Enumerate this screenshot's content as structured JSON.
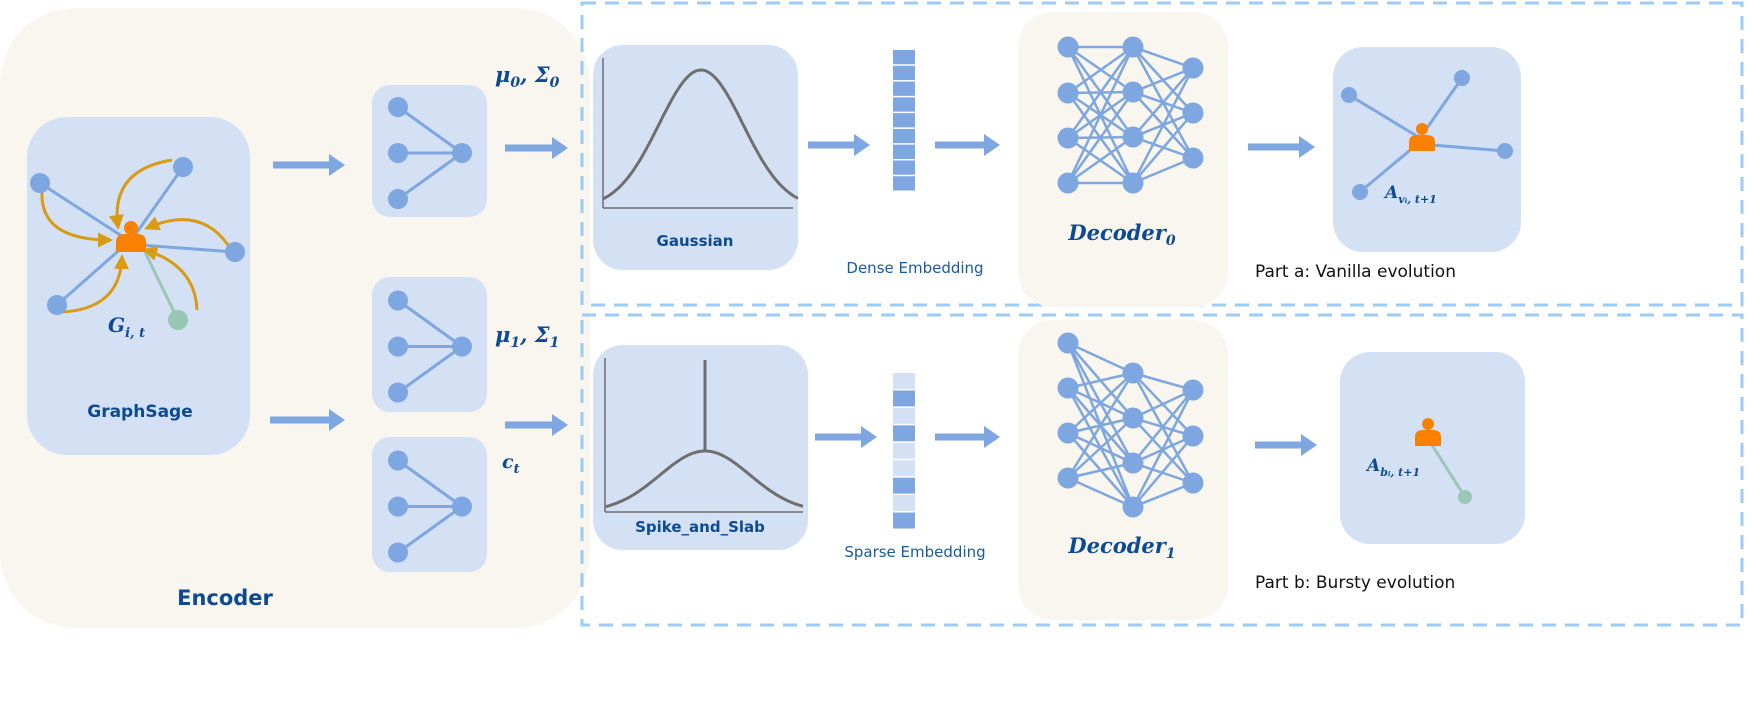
{
  "colors": {
    "encoder_bg": "#f8f6ee",
    "panel_bg": "#d4e1f4",
    "node": "#7ea6e0",
    "edge": "#7ea6e0",
    "person": "#fa8000",
    "aggregation_arrow": "#d99b14",
    "bursty_node": "#9ac7b5",
    "dashed_border": "#9ccbf5",
    "text": "#0d4a94",
    "curve": "#6f6f6f"
  },
  "encoder": {
    "title": "Encoder",
    "graphsage": {
      "label": "GraphSage",
      "graph_label": {
        "main": "G",
        "sub": "i, t"
      }
    },
    "outputs": {
      "mu0_sigma0": {
        "main": "μ",
        "sub1": "0",
        "mid": ", Σ",
        "sub2": "0"
      },
      "mu1_sigma1": {
        "main": "μ",
        "sub1": "1",
        "mid": ", Σ",
        "sub2": "1"
      },
      "c_t": {
        "main": "c",
        "sub": "t"
      }
    }
  },
  "part_a": {
    "caption": "Part a: Vanilla evolution",
    "distribution": "Gaussian",
    "embedding_label": "Dense Embedding",
    "embedding_pattern": [
      1,
      1,
      1,
      1,
      1,
      1,
      1,
      1,
      1
    ],
    "decoder": {
      "main": "Decoder",
      "sub": "0"
    },
    "output_label": {
      "main": "A",
      "sub": "vᵢ, t+1"
    }
  },
  "part_b": {
    "caption": "Part b: Bursty evolution",
    "distribution": "Spike_and_Slab",
    "embedding_label": "Sparse Embedding",
    "embedding_pattern": [
      0,
      1,
      0,
      1,
      0,
      0,
      1,
      0,
      1
    ],
    "decoder": {
      "main": "Decoder",
      "sub": "1"
    },
    "output_label": {
      "main": "A",
      "sub": "bᵢ, t+1"
    }
  }
}
